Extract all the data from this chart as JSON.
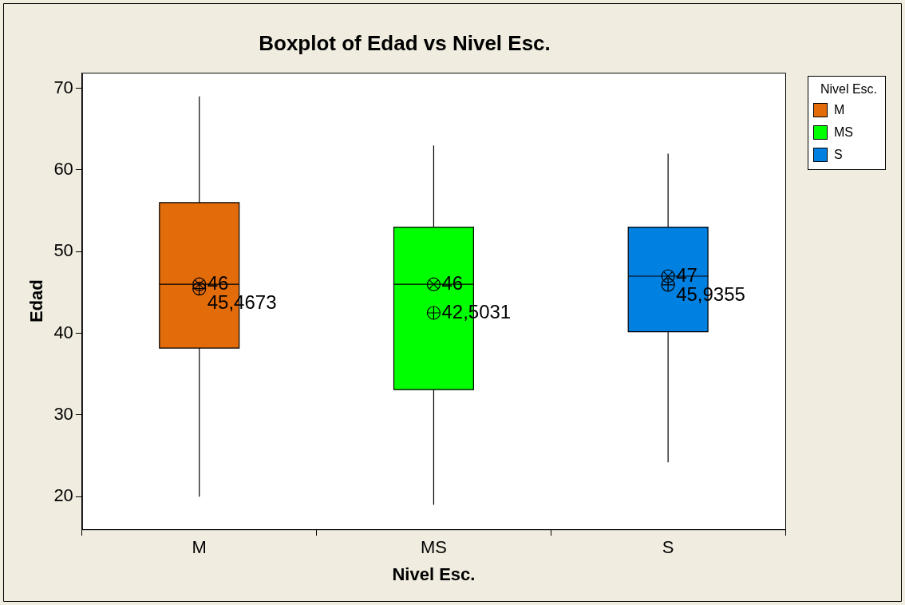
{
  "chart_data": {
    "type": "box",
    "title": "Boxplot of Edad vs Nivel Esc.",
    "xlabel": "Nivel Esc.",
    "ylabel": "Edad",
    "legend_title": "Nivel Esc.",
    "legend": "top right",
    "grid": false,
    "categories": [
      "M",
      "MS",
      "S"
    ],
    "series": [
      {
        "name": "M",
        "color": "#e36c0a",
        "boxes": [
          {
            "low": 20,
            "q1": 38.2,
            "median": 46,
            "q3": 56,
            "high": 69,
            "mean": 45.4673
          },
          null,
          null
        ]
      },
      {
        "name": "MS",
        "color": "#00ff00",
        "boxes": [
          null,
          {
            "low": 19,
            "q1": 33.1,
            "median": 46,
            "q3": 53,
            "high": 63,
            "mean": 42.5031
          },
          null
        ]
      },
      {
        "name": "S",
        "color": "#0080e0",
        "boxes": [
          null,
          null,
          {
            "low": 24.2,
            "q1": 40.2,
            "median": 47,
            "q3": 53,
            "high": 62,
            "mean": 45.9355
          }
        ]
      }
    ],
    "ylim": [
      16,
      71.9
    ],
    "yticks": [
      20,
      30,
      40,
      50,
      60,
      70
    ],
    "annotations": [
      {
        "text": "46",
        "x": "M",
        "y": 46
      },
      "45,4673",
      {
        "text": "46",
        "x": "MS",
        "y": 46
      },
      "42,5031",
      {
        "text": "47",
        "x": "S",
        "y": 47
      },
      "45,9355"
    ]
  }
}
